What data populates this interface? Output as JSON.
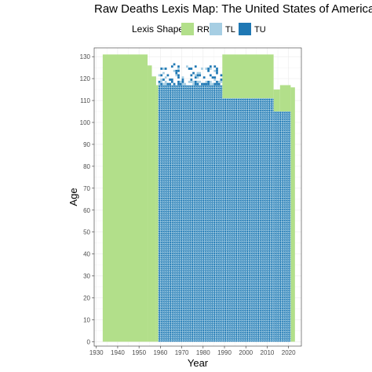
{
  "chart_data": {
    "type": "heatmap",
    "title": "Raw Deaths Lexis Map: The United States of America - Female",
    "xlabel": "Year",
    "ylabel": "Age",
    "xlim": [
      1929,
      2026
    ],
    "ylim": [
      -2,
      134
    ],
    "x_ticks": [
      1930,
      1940,
      1950,
      1960,
      1970,
      1980,
      1990,
      2000,
      2010,
      2020
    ],
    "y_ticks": [
      0,
      10,
      20,
      30,
      40,
      50,
      60,
      70,
      80,
      90,
      100,
      110,
      120,
      130
    ],
    "grid": true,
    "legend_position": "top",
    "legend": {
      "title": "Lexis Shape",
      "entries": [
        {
          "label": "RR",
          "color": "#b2df8a"
        },
        {
          "label": "TL",
          "color": "#a6cee3"
        },
        {
          "label": "TU",
          "color": "#1f78b4"
        }
      ]
    },
    "regions": [
      {
        "shape": "RR",
        "year_start": 1933,
        "year_end": 1954,
        "age_start": 0,
        "age_end": 131
      },
      {
        "shape": "RR",
        "year_start": 1954,
        "year_end": 1956,
        "age_start": 0,
        "age_end": 126
      },
      {
        "shape": "RR",
        "year_start": 1956,
        "year_end": 1958,
        "age_start": 0,
        "age_end": 121
      },
      {
        "shape": "RR",
        "year_start": 1958,
        "year_end": 1959,
        "age_start": 0,
        "age_end": 117
      },
      {
        "shape": "RR",
        "year_start": 1989,
        "year_end": 2013,
        "age_start": 111,
        "age_end": 131
      },
      {
        "shape": "RR",
        "year_start": 2013,
        "year_end": 2016,
        "age_start": 105,
        "age_end": 115
      },
      {
        "shape": "RR",
        "year_start": 2016,
        "year_end": 2021,
        "age_start": 105,
        "age_end": 117
      },
      {
        "shape": "RR",
        "year_start": 2021,
        "year_end": 2023,
        "age_start": 0,
        "age_end": 116
      },
      {
        "shape": "TL_TU",
        "year_start": 1959,
        "year_end": 1989,
        "age_start": 0,
        "age_end": 117
      },
      {
        "shape": "TL_TU",
        "year_start": 1989,
        "year_end": 2013,
        "age_start": 0,
        "age_end": 111
      },
      {
        "shape": "TL_TU",
        "year_start": 2013,
        "year_end": 2021,
        "age_start": 0,
        "age_end": 105
      }
    ]
  },
  "colors": {
    "RR": "#b2df8a",
    "TL": "#a6cee3",
    "TU": "#1f78b4",
    "grid": "#ebebeb",
    "panel_border": "#333333"
  }
}
